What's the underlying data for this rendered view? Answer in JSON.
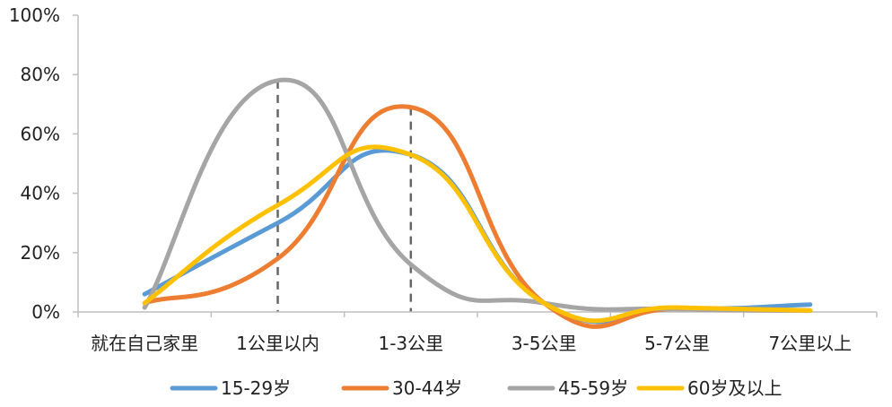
{
  "chart_data": {
    "type": "line",
    "title": "",
    "xlabel": "",
    "ylabel": "",
    "categories": [
      "就在自己家里",
      "1公里以内",
      "1-3公里",
      "3-5公里",
      "5-7公里",
      "7公里以上"
    ],
    "y_ticks": [
      "0%",
      "20%",
      "40%",
      "60%",
      "80%",
      "100%"
    ],
    "ylim": [
      0,
      100
    ],
    "grid": false,
    "legend_position": "bottom",
    "series": [
      {
        "name": "15-29岁",
        "color": "#5B9BD5",
        "values": [
          6,
          30,
          53,
          3,
          1,
          2.5
        ]
      },
      {
        "name": "30-44岁",
        "color": "#ED7D31",
        "values": [
          3,
          18,
          69,
          3,
          1,
          0.5
        ]
      },
      {
        "name": "45-59岁",
        "color": "#A5A5A5",
        "values": [
          1.5,
          78,
          16,
          3,
          1,
          0.5
        ]
      },
      {
        "name": "60岁及以上",
        "color": "#FFC000",
        "values": [
          3,
          36,
          53,
          3,
          1.5,
          0.5
        ]
      }
    ],
    "reference_lines_at_categories": [
      "1公里以内",
      "1-3公里"
    ]
  }
}
